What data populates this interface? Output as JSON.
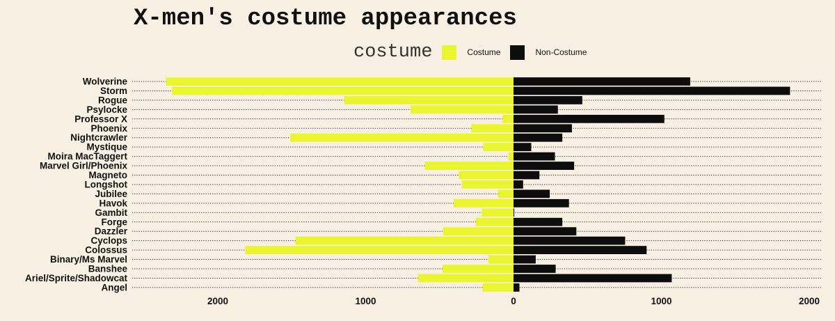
{
  "chart_data": {
    "type": "bar",
    "orientation": "horizontal-diverging",
    "title": "X-men's costume appearances",
    "legend_title": "costume",
    "legend_position": "top",
    "categories": [
      "Wolverine",
      "Storm",
      "Rogue",
      "Psylocke",
      "Professor X",
      "Phoenix",
      "Nightcrawler",
      "Mystique",
      "Moira MacTaggert",
      "Marvel Girl/Phoenix",
      "Magneto",
      "Longshot",
      "Jubilee",
      "Havok",
      "Gambit",
      "Forge",
      "Dazzler",
      "Cyclops",
      "Colossus",
      "Binary/Ms Marvel",
      "Banshee",
      "Ariel/Sprite/Shadowcat",
      "Angel"
    ],
    "series": [
      {
        "name": "Costume",
        "color": "#eaf52f",
        "direction": "left",
        "values": [
          2350,
          2310,
          1145,
          695,
          75,
          285,
          1510,
          205,
          35,
          600,
          370,
          350,
          105,
          405,
          215,
          255,
          475,
          1475,
          1815,
          170,
          480,
          645,
          210
        ]
      },
      {
        "name": "Non-Costume",
        "color": "#0d0d0d",
        "direction": "right",
        "values": [
          1195,
          1870,
          465,
          300,
          1020,
          395,
          330,
          120,
          280,
          410,
          175,
          65,
          245,
          375,
          5,
          330,
          425,
          755,
          900,
          150,
          285,
          1070,
          40
        ]
      }
    ],
    "x_ticks": [
      {
        "value": -2000,
        "label": "2000"
      },
      {
        "value": -1000,
        "label": "1000"
      },
      {
        "value": 0,
        "label": "0"
      },
      {
        "value": 1000,
        "label": "1000"
      },
      {
        "value": 2000,
        "label": "2000"
      }
    ],
    "xlim": [
      -2560,
      2070
    ],
    "grid": "dotted-horizontal",
    "background": "#f7f0e3"
  }
}
